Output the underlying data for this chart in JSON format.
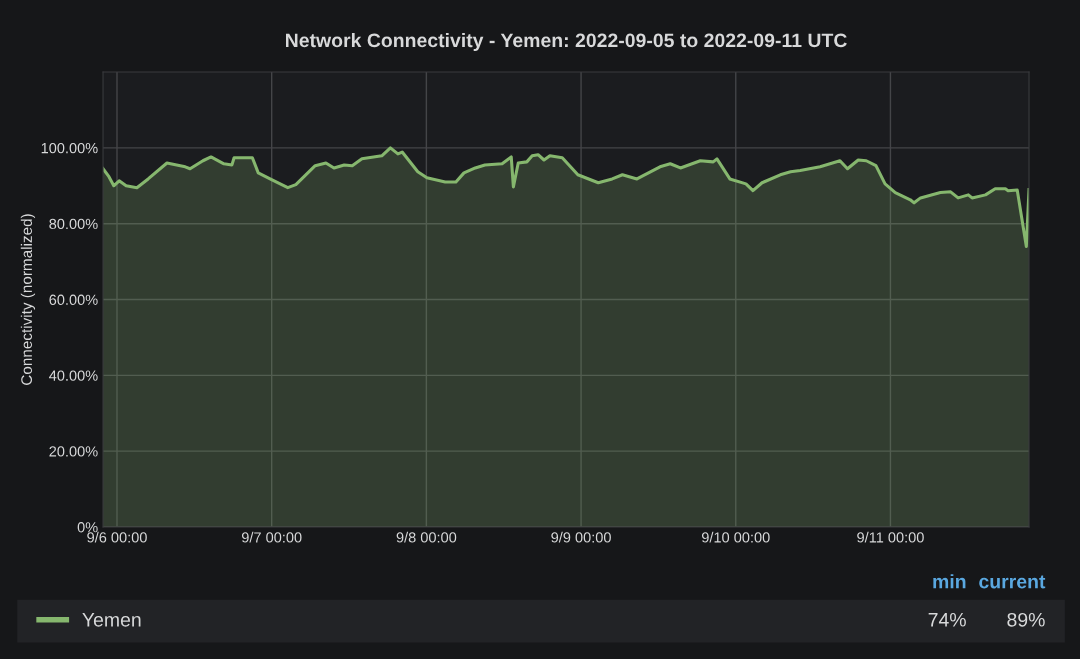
{
  "chart_data": {
    "type": "area",
    "title": "Network Connectivity - Yemen: 2022-09-05 to 2022-09-11 UTC",
    "ylabel": "Connectivity (normalized)",
    "annotations": [
      "min",
      "current",
      "74%",
      "89%"
    ],
    "x": [
      "2022-09-05T21:50",
      "2022-09-05T22:45",
      "2022-09-05T23:30",
      "2022-09-06T00:20",
      "2022-09-06T01:25",
      "2022-09-06T03:05",
      "2022-09-06T04:50",
      "2022-09-06T07:45",
      "2022-09-06T10:35",
      "2022-09-06T11:20",
      "2022-09-06T13:20",
      "2022-09-06T14:35",
      "2022-09-06T16:35",
      "2022-09-06T17:50",
      "2022-09-06T18:10",
      "2022-09-06T21:00",
      "2022-09-06T21:55",
      "2022-09-06T23:45",
      "2022-09-07T02:30",
      "2022-09-07T03:45",
      "2022-09-07T06:45",
      "2022-09-07T08:25",
      "2022-09-07T09:40",
      "2022-09-07T11:15",
      "2022-09-07T12:30",
      "2022-09-07T14:00",
      "2022-09-07T17:05",
      "2022-09-07T18:25",
      "2022-09-07T19:35",
      "2022-09-07T20:15",
      "2022-09-07T22:40",
      "2022-09-08T00:05",
      "2022-09-08T02:55",
      "2022-09-08T04:35",
      "2022-09-08T05:50",
      "2022-09-08T07:35",
      "2022-09-08T09:05",
      "2022-09-08T11:45",
      "2022-09-08T13:10",
      "2022-09-08T13:30",
      "2022-09-08T14:15",
      "2022-09-08T15:35",
      "2022-09-08T16:25",
      "2022-09-08T17:20",
      "2022-09-08T18:15",
      "2022-09-08T19:10",
      "2022-09-08T21:05",
      "2022-09-08T23:30",
      "2022-09-09T02:40",
      "2022-09-09T04:50",
      "2022-09-09T06:25",
      "2022-09-09T08:40",
      "2022-09-09T12:15",
      "2022-09-09T13:50",
      "2022-09-09T15:25",
      "2022-09-09T18:30",
      "2022-09-09T20:30",
      "2022-09-09T21:05",
      "2022-09-09T23:05",
      "2022-09-10T01:35",
      "2022-09-10T02:40",
      "2022-09-10T04:05",
      "2022-09-10T06:55",
      "2022-09-10T08:30",
      "2022-09-10T10:00",
      "2022-09-10T13:05",
      "2022-09-10T16:10",
      "2022-09-10T17:20",
      "2022-09-10T19:00",
      "2022-09-10T20:15",
      "2022-09-10T21:45",
      "2022-09-10T23:10",
      "2022-09-11T00:45",
      "2022-09-11T03:05",
      "2022-09-11T03:40",
      "2022-09-11T04:40",
      "2022-09-11T07:45",
      "2022-09-11T09:20",
      "2022-09-11T10:30",
      "2022-09-11T12:05",
      "2022-09-11T12:40",
      "2022-09-11T14:45",
      "2022-09-11T16:15",
      "2022-09-11T17:50",
      "2022-09-11T18:15",
      "2022-09-11T19:40",
      "2022-09-11T21:05",
      "2022-09-11T21:30"
    ],
    "series": [
      {
        "name": "Yemen",
        "color": "#86b76e",
        "values": [
          94.5,
          92.4,
          90,
          91.3,
          90,
          89.5,
          91.8,
          96,
          95,
          94.5,
          96.6,
          97.6,
          95.8,
          95.5,
          97.4,
          97.4,
          93.4,
          91.8,
          89.5,
          90.3,
          95.3,
          96,
          94.7,
          95.5,
          95.3,
          97.1,
          97.9,
          100,
          98.4,
          98.9,
          93.7,
          92.1,
          91,
          91,
          93.4,
          94.7,
          95.5,
          95.8,
          97.6,
          89.7,
          96,
          96.3,
          97.9,
          98.2,
          96.8,
          97.9,
          97.4,
          92.9,
          90.8,
          91.8,
          92.9,
          91.8,
          95,
          95.8,
          94.7,
          96.6,
          96.3,
          97.1,
          91.8,
          90.5,
          88.7,
          90.8,
          92.9,
          93.7,
          94,
          95,
          96.6,
          94.5,
          96.8,
          96.6,
          95.3,
          90.5,
          88.2,
          86.3,
          85.5,
          86.8,
          88.2,
          88.4,
          86.8,
          87.6,
          86.8,
          87.6,
          89.2,
          89.2,
          88.7,
          88.9,
          74,
          89
        ]
      }
    ],
    "xlim": [
      "2022-09-05T21:50",
      "2022-09-11T21:30"
    ],
    "xticks": [
      {
        "value": "2022-09-06T00:00",
        "label": "9/6 00:00"
      },
      {
        "value": "2022-09-07T00:00",
        "label": "9/7 00:00"
      },
      {
        "value": "2022-09-08T00:00",
        "label": "9/8 00:00"
      },
      {
        "value": "2022-09-09T00:00",
        "label": "9/9 00:00"
      },
      {
        "value": "2022-09-10T00:00",
        "label": "9/10 00:00"
      },
      {
        "value": "2022-09-11T00:00",
        "label": "9/11 00:00"
      }
    ],
    "ylim": [
      0,
      120
    ],
    "yticks": [
      {
        "value": 0,
        "label": "0%"
      },
      {
        "value": 20,
        "label": "20.00%"
      },
      {
        "value": 40,
        "label": "40.00%"
      },
      {
        "value": 60,
        "label": "60.00%"
      },
      {
        "value": 80,
        "label": "80.00%"
      },
      {
        "value": 100,
        "label": "100.00%"
      }
    ],
    "grid": true,
    "legend": "bottom",
    "line_style": "solid"
  }
}
